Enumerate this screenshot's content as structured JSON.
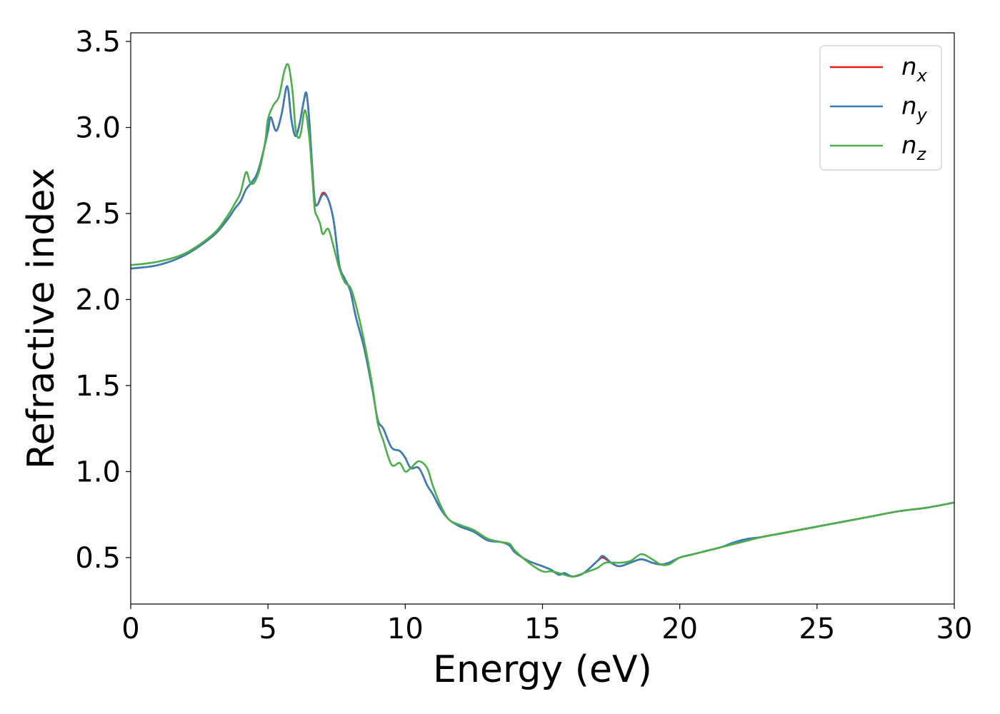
{
  "chart_data": {
    "type": "line",
    "title": "",
    "xlabel": "Energy (eV)",
    "ylabel": "Refractive index",
    "xlim": [
      0,
      30
    ],
    "ylim": [
      0.23,
      3.55
    ],
    "xticks": [
      0,
      5,
      10,
      15,
      20,
      25,
      30
    ],
    "xtick_labels": [
      "0",
      "5",
      "10",
      "15",
      "20",
      "25",
      "30"
    ],
    "yticks": [
      0.5,
      1.0,
      1.5,
      2.0,
      2.5,
      3.0,
      3.5
    ],
    "ytick_labels": [
      "0.5",
      "1.0",
      "1.5",
      "2.0",
      "2.5",
      "3.0",
      "3.5"
    ],
    "grid": false,
    "legend_position": "top-right",
    "series": [
      {
        "name": "n_x",
        "label_base": "n",
        "label_sub": "x",
        "color": "#e41a1c",
        "x": [
          0,
          1,
          2,
          3,
          3.5,
          3.8,
          4.0,
          4.2,
          4.4,
          4.6,
          4.8,
          5.0,
          5.1,
          5.3,
          5.5,
          5.7,
          5.85,
          6.0,
          6.15,
          6.3,
          6.4,
          6.5,
          6.6,
          6.7,
          6.8,
          7.0,
          7.2,
          7.4,
          7.6,
          7.8,
          8.0,
          8.2,
          8.5,
          8.8,
          9.0,
          9.2,
          9.5,
          9.8,
          10.0,
          10.2,
          10.5,
          10.8,
          11.0,
          11.3,
          11.6,
          12.0,
          12.5,
          13.0,
          13.5,
          13.8,
          14.0,
          14.5,
          15.0,
          15.3,
          15.6,
          15.8,
          16.1,
          16.5,
          17.0,
          17.2,
          17.5,
          17.8,
          18.2,
          18.6,
          19.0,
          19.3,
          19.6,
          20.0,
          20.5,
          21.0,
          21.5,
          22.0,
          22.5,
          23.0,
          24.0,
          25.0,
          26.0,
          27.0,
          28.0,
          29.0,
          30.0
        ],
        "y": [
          2.18,
          2.2,
          2.26,
          2.37,
          2.46,
          2.53,
          2.57,
          2.64,
          2.68,
          2.73,
          2.84,
          2.98,
          3.06,
          2.98,
          3.08,
          3.24,
          3.05,
          2.95,
          3.02,
          3.15,
          3.2,
          3.05,
          2.8,
          2.58,
          2.55,
          2.62,
          2.58,
          2.45,
          2.2,
          2.12,
          2.05,
          1.9,
          1.72,
          1.48,
          1.3,
          1.25,
          1.14,
          1.12,
          1.08,
          1.02,
          1.02,
          0.92,
          0.87,
          0.78,
          0.72,
          0.68,
          0.65,
          0.6,
          0.59,
          0.57,
          0.53,
          0.48,
          0.45,
          0.43,
          0.4,
          0.41,
          0.39,
          0.41,
          0.48,
          0.5,
          0.47,
          0.45,
          0.47,
          0.49,
          0.47,
          0.46,
          0.47,
          0.5,
          0.52,
          0.54,
          0.56,
          0.58,
          0.6,
          0.62,
          0.65,
          0.68,
          0.71,
          0.74,
          0.77,
          0.79,
          0.82
        ]
      },
      {
        "name": "n_y",
        "label_base": "n",
        "label_sub": "y",
        "color": "#377eb8",
        "x": [
          0,
          1,
          2,
          3,
          3.5,
          3.8,
          4.0,
          4.2,
          4.4,
          4.6,
          4.8,
          5.0,
          5.1,
          5.3,
          5.5,
          5.7,
          5.85,
          6.0,
          6.15,
          6.3,
          6.4,
          6.5,
          6.6,
          6.7,
          6.8,
          7.0,
          7.2,
          7.4,
          7.6,
          7.8,
          8.0,
          8.2,
          8.5,
          8.8,
          9.0,
          9.2,
          9.5,
          9.8,
          10.0,
          10.2,
          10.5,
          10.8,
          11.0,
          11.3,
          11.6,
          12.0,
          12.5,
          13.0,
          13.5,
          13.8,
          14.0,
          14.5,
          15.0,
          15.3,
          15.6,
          15.8,
          16.1,
          16.5,
          17.0,
          17.2,
          17.5,
          17.8,
          18.2,
          18.6,
          19.0,
          19.3,
          19.6,
          20.0,
          20.5,
          21.0,
          21.5,
          22.0,
          22.5,
          23.0,
          24.0,
          25.0,
          26.0,
          27.0,
          28.0,
          29.0,
          30.0
        ],
        "y": [
          2.18,
          2.2,
          2.26,
          2.37,
          2.46,
          2.53,
          2.57,
          2.64,
          2.68,
          2.73,
          2.84,
          2.98,
          3.06,
          2.98,
          3.08,
          3.24,
          3.05,
          2.95,
          3.02,
          3.15,
          3.2,
          3.05,
          2.8,
          2.58,
          2.55,
          2.61,
          2.58,
          2.45,
          2.2,
          2.12,
          2.05,
          1.9,
          1.72,
          1.48,
          1.3,
          1.25,
          1.14,
          1.12,
          1.08,
          1.02,
          1.02,
          0.92,
          0.87,
          0.78,
          0.72,
          0.68,
          0.65,
          0.6,
          0.59,
          0.57,
          0.53,
          0.48,
          0.45,
          0.43,
          0.4,
          0.41,
          0.39,
          0.41,
          0.48,
          0.51,
          0.47,
          0.45,
          0.47,
          0.49,
          0.47,
          0.46,
          0.47,
          0.5,
          0.52,
          0.54,
          0.56,
          0.59,
          0.61,
          0.62,
          0.65,
          0.68,
          0.71,
          0.74,
          0.77,
          0.79,
          0.82
        ]
      },
      {
        "name": "n_z",
        "label_base": "n",
        "label_sub": "z",
        "color": "#4daf4a",
        "x": [
          0,
          1,
          2,
          3,
          3.5,
          3.8,
          4.0,
          4.2,
          4.35,
          4.5,
          4.7,
          4.9,
          5.0,
          5.2,
          5.4,
          5.6,
          5.75,
          5.9,
          6.0,
          6.1,
          6.2,
          6.35,
          6.5,
          6.6,
          6.7,
          6.8,
          6.9,
          7.0,
          7.2,
          7.4,
          7.6,
          7.8,
          8.0,
          8.2,
          8.5,
          8.8,
          9.0,
          9.2,
          9.5,
          9.8,
          10.0,
          10.2,
          10.5,
          10.8,
          11.0,
          11.3,
          11.6,
          12.0,
          12.5,
          13.0,
          13.5,
          13.8,
          14.0,
          14.5,
          15.0,
          15.3,
          15.6,
          15.8,
          16.1,
          16.5,
          17.0,
          17.3,
          17.8,
          18.2,
          18.6,
          19.0,
          19.3,
          19.6,
          20.0,
          20.5,
          21.0,
          21.5,
          22.0,
          22.5,
          23.0,
          24.0,
          25.0,
          26.0,
          27.0,
          28.0,
          29.0,
          30.0
        ],
        "y": [
          2.2,
          2.22,
          2.27,
          2.38,
          2.48,
          2.56,
          2.62,
          2.74,
          2.68,
          2.68,
          2.76,
          2.92,
          3.05,
          3.13,
          3.18,
          3.33,
          3.36,
          3.2,
          3.0,
          2.94,
          2.97,
          3.1,
          2.95,
          2.75,
          2.53,
          2.48,
          2.44,
          2.38,
          2.41,
          2.3,
          2.18,
          2.1,
          2.07,
          1.97,
          1.76,
          1.5,
          1.28,
          1.18,
          1.04,
          1.05,
          1.0,
          1.02,
          1.06,
          1.02,
          0.92,
          0.8,
          0.72,
          0.69,
          0.66,
          0.61,
          0.59,
          0.58,
          0.54,
          0.47,
          0.42,
          0.42,
          0.41,
          0.4,
          0.39,
          0.41,
          0.44,
          0.47,
          0.47,
          0.48,
          0.52,
          0.49,
          0.46,
          0.46,
          0.5,
          0.52,
          0.54,
          0.56,
          0.58,
          0.6,
          0.62,
          0.65,
          0.68,
          0.71,
          0.74,
          0.77,
          0.79,
          0.82
        ]
      }
    ]
  }
}
